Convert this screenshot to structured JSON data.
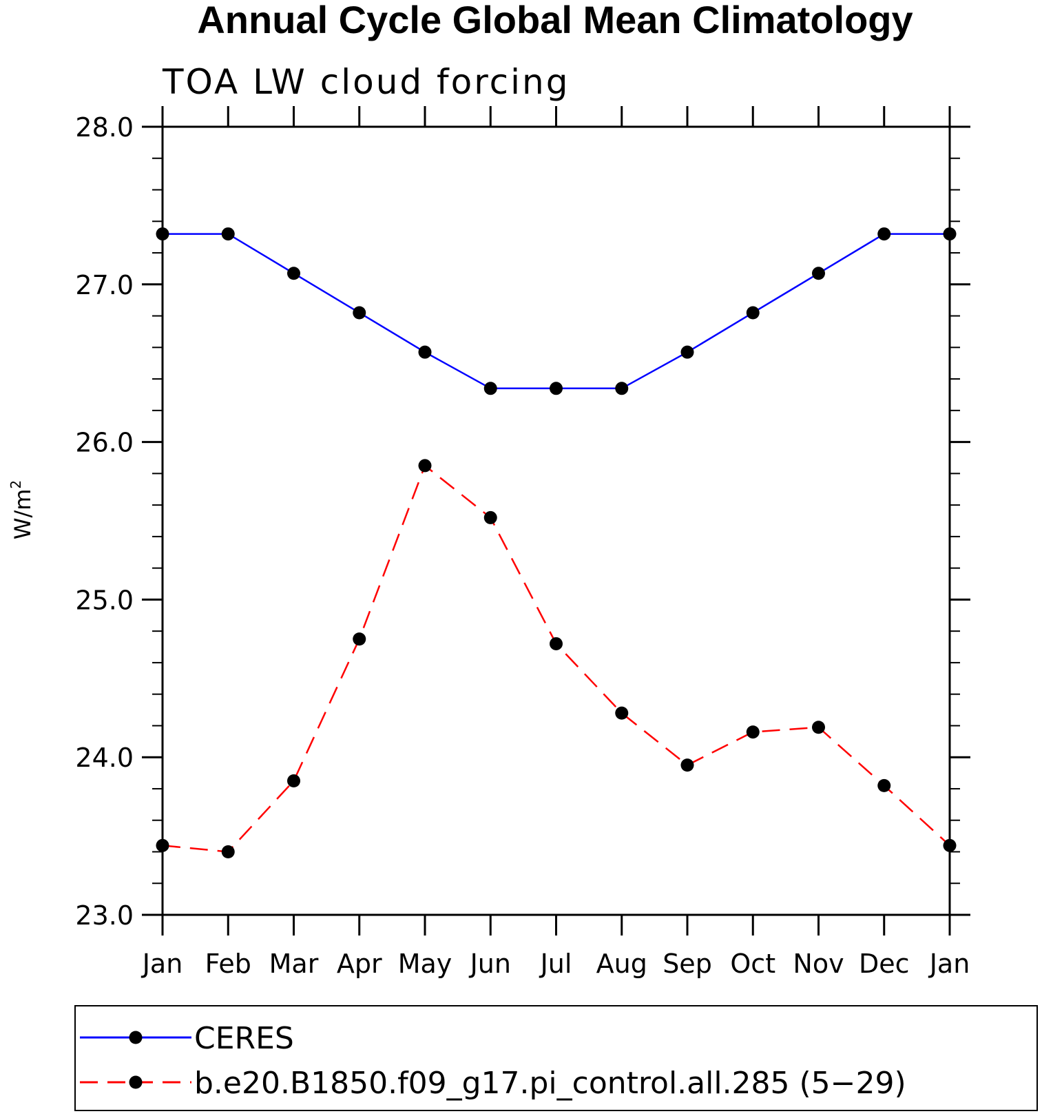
{
  "chart_data": {
    "type": "line",
    "title": "Annual Cycle Global Mean Climatology",
    "subtitle": "TOA LW cloud forcing",
    "ylabel": "W/m",
    "ylabel_superscript": "2",
    "ylim": [
      23.0,
      28.0
    ],
    "yticks": [
      "23.0",
      "24.0",
      "25.0",
      "26.0",
      "27.0",
      "28.0"
    ],
    "categories": [
      "Jan",
      "Feb",
      "Mar",
      "Apr",
      "May",
      "Jun",
      "Jul",
      "Aug",
      "Sep",
      "Oct",
      "Nov",
      "Dec",
      "Jan"
    ],
    "series": [
      {
        "name": "CERES",
        "color": "#0000ff",
        "dash": "solid",
        "values": [
          27.32,
          27.32,
          27.07,
          26.82,
          26.57,
          26.34,
          26.34,
          26.34,
          26.57,
          26.82,
          27.07,
          27.32,
          27.32
        ]
      },
      {
        "name": "b.e20.B1850.f09_g17.pi_control.all.285 (5−29)",
        "color": "#ff0000",
        "dash": "dashed",
        "values": [
          23.44,
          23.4,
          23.85,
          24.75,
          25.85,
          25.52,
          24.72,
          24.28,
          23.95,
          24.16,
          24.19,
          23.82,
          23.44
        ]
      }
    ],
    "marker_color": "#000000",
    "grid": false,
    "legend_position": "bottom"
  }
}
